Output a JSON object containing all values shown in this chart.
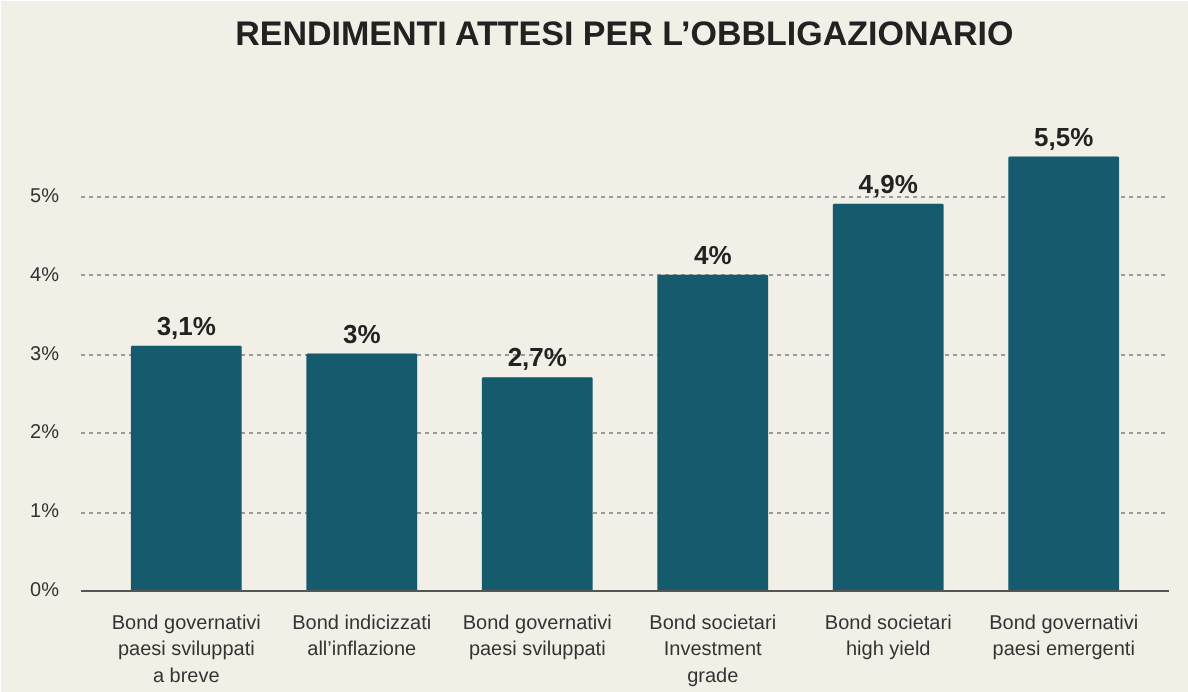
{
  "chart_data": {
    "type": "bar",
    "title": "RENDIMENTI ATTESI PER L’OBBLIGAZIONARIO",
    "categories": [
      "Bond governativi\npaesi sviluppati\na breve",
      "Bond indicizzati\nall’inflazione",
      "Bond governativi\npaesi sviluppati",
      "Bond societari\nInvestment\ngrade",
      "Bond societari\nhigh yield",
      "Bond governativi\npaesi emergenti"
    ],
    "values": [
      3.1,
      3.0,
      2.7,
      4.0,
      4.9,
      5.5
    ],
    "value_labels": [
      "3,1%",
      "3%",
      "2,7%",
      "4%",
      "4,9%",
      "5,5%"
    ],
    "color": "#165a6e",
    "ylim": [
      0,
      6.7
    ],
    "yticks": [
      {
        "value": 0,
        "label": "0%"
      },
      {
        "value": 1,
        "label": "1%"
      },
      {
        "value": 2,
        "label": "2%"
      },
      {
        "value": 3,
        "label": "3%"
      },
      {
        "value": 4,
        "label": "4%"
      },
      {
        "value": 5,
        "label": "5%"
      }
    ],
    "grid": "y"
  }
}
